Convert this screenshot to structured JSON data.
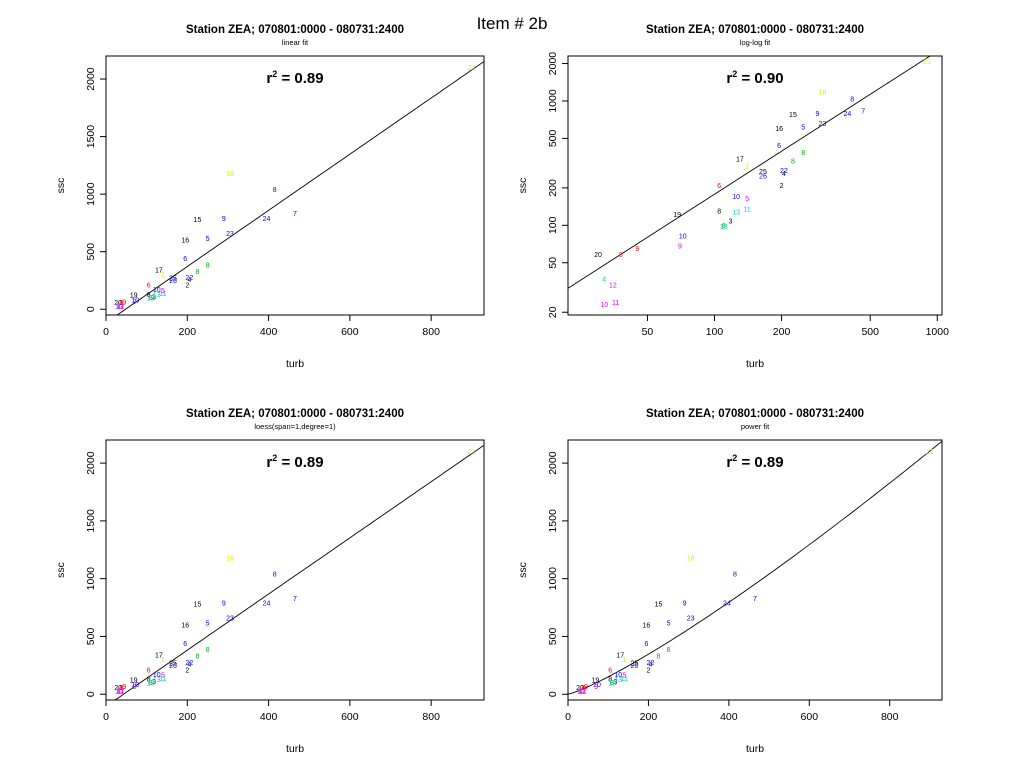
{
  "page": {
    "title": "Item # 2b"
  },
  "colors": {
    "black": "#000000",
    "red": "#ff0000",
    "green": "#00b000",
    "blue": "#0000ff",
    "cyan": "#00d0d0",
    "magenta": "#ee00ee",
    "yellow": "#e8e800"
  },
  "points": [
    {
      "label": "1",
      "turb": 140,
      "ssc": 300,
      "color": "yellow"
    },
    {
      "label": "2",
      "turb": 200,
      "ssc": 210,
      "color": "black"
    },
    {
      "label": "3",
      "turb": 118,
      "ssc": 108,
      "color": "black"
    },
    {
      "label": "4",
      "turb": 205,
      "ssc": 260,
      "color": "black"
    },
    {
      "label": "5",
      "turb": 250,
      "ssc": 615,
      "color": "blue"
    },
    {
      "label": "6",
      "turb": 195,
      "ssc": 440,
      "color": "blue"
    },
    {
      "label": "7",
      "turb": 465,
      "ssc": 830,
      "color": "blue"
    },
    {
      "label": "8",
      "turb": 415,
      "ssc": 1040,
      "color": "blue"
    },
    {
      "label": "9",
      "turb": 290,
      "ssc": 790,
      "color": "blue"
    },
    {
      "label": "23",
      "turb": 305,
      "ssc": 660,
      "color": "blue"
    },
    {
      "label": "24",
      "turb": 395,
      "ssc": 790,
      "color": "blue"
    },
    {
      "label": "22",
      "turb": 205,
      "ssc": 275,
      "color": "blue"
    },
    {
      "label": "15",
      "turb": 225,
      "ssc": 780,
      "color": "black"
    },
    {
      "label": "16",
      "turb": 195,
      "ssc": 600,
      "color": "black"
    },
    {
      "label": "17",
      "turb": 130,
      "ssc": 340,
      "color": "black"
    },
    {
      "label": "18",
      "turb": 305,
      "ssc": 1180,
      "color": "yellow"
    },
    {
      "label": "21",
      "turb": 900,
      "ssc": 2100,
      "color": "yellow"
    },
    {
      "label": "g1",
      "turb": 250,
      "ssc": 385,
      "color": "green"
    },
    {
      "label": "g2",
      "turb": 225,
      "ssc": 330,
      "color": "green"
    },
    {
      "label": "25",
      "turb": 165,
      "ssc": 270,
      "color": "black"
    },
    {
      "label": "26",
      "turb": 165,
      "ssc": 250,
      "color": "blue"
    },
    {
      "label": "8",
      "turb": 105,
      "ssc": 130,
      "color": "black"
    },
    {
      "label": "9",
      "turb": 45,
      "ssc": 65,
      "color": "red"
    },
    {
      "label": "8",
      "turb": 38,
      "ssc": 58,
      "color": "red"
    },
    {
      "label": "20",
      "turb": 30,
      "ssc": 58,
      "color": "black"
    },
    {
      "label": "19",
      "turb": 68,
      "ssc": 122,
      "color": "black"
    },
    {
      "label": "10",
      "turb": 72,
      "ssc": 82,
      "color": "blue"
    },
    {
      "label": "6",
      "turb": 105,
      "ssc": 210,
      "color": "red"
    },
    {
      "label": "11",
      "turb": 140,
      "ssc": 135,
      "color": "cyan"
    },
    {
      "label": "13",
      "turb": 110,
      "ssc": 98,
      "color": "cyan"
    },
    {
      "label": "10",
      "turb": 125,
      "ssc": 170,
      "color": "blue"
    },
    {
      "label": "5",
      "turb": 140,
      "ssc": 165,
      "color": "magenta"
    },
    {
      "label": "12",
      "turb": 35,
      "ssc": 33,
      "color": "magenta"
    },
    {
      "label": "10",
      "turb": 32,
      "ssc": 23,
      "color": "magenta"
    },
    {
      "label": "11",
      "turb": 36,
      "ssc": 24,
      "color": "magenta"
    },
    {
      "label": "4",
      "turb": 32,
      "ssc": 37,
      "color": "cyan"
    },
    {
      "label": "9",
      "turb": 70,
      "ssc": 68,
      "color": "magenta"
    },
    {
      "label": "13",
      "turb": 125,
      "ssc": 128,
      "color": "cyan"
    },
    {
      "label": "8",
      "turb": 110,
      "ssc": 100,
      "color": "green"
    }
  ],
  "panels": [
    {
      "title": "Station ZEA; 070801:0000 - 080731:2400",
      "subtitle": "linear fit",
      "r2_label": "r",
      "r2_sup": "2",
      "r2_value": " = 0.89",
      "xlabel": "turb",
      "ylabel": "ssc",
      "scale": "linear",
      "xlim": [
        0,
        930
      ],
      "ylim": [
        -50,
        2200
      ],
      "xticks": [
        "0",
        "200",
        "400",
        "600",
        "800"
      ],
      "xtick_values": [
        0,
        200,
        400,
        600,
        800
      ],
      "yticks": [
        "0",
        "500",
        "1000",
        "1500",
        "2000"
      ],
      "ytick_values": [
        0,
        500,
        1000,
        1500,
        2000
      ],
      "fit": {
        "kind": "linear",
        "intercept": -117,
        "slope": 2.44
      }
    },
    {
      "title": "Station ZEA; 070801:0000 - 080731:2400",
      "subtitle": "log-log fit",
      "r2_label": "r",
      "r2_sup": "2",
      "r2_value": " = 0.90",
      "xlabel": "turb",
      "ylabel": "ssc",
      "scale": "loglog",
      "xlim": [
        22,
        1050
      ],
      "ylim": [
        19,
        2300
      ],
      "xticks": [
        "50",
        "100",
        "200",
        "500",
        "1000"
      ],
      "xtick_values": [
        50,
        100,
        200,
        500,
        1000
      ],
      "yticks": [
        "20",
        "50",
        "100",
        "200",
        "500",
        "1000",
        "2000"
      ],
      "ytick_values": [
        20,
        50,
        100,
        200,
        500,
        1000,
        2000
      ],
      "fit": {
        "kind": "power",
        "a": 0.89,
        "b": 1.15
      }
    },
    {
      "title": "Station ZEA; 070801:0000 - 080731:2400",
      "subtitle": "loess(span=1,degree=1)",
      "r2_label": "r",
      "r2_sup": "2",
      "r2_value": " = 0.89",
      "xlabel": "turb",
      "ylabel": "ssc",
      "scale": "linear",
      "xlim": [
        0,
        930
      ],
      "ylim": [
        -50,
        2200
      ],
      "xticks": [
        "0",
        "200",
        "400",
        "600",
        "800"
      ],
      "xtick_values": [
        0,
        200,
        400,
        600,
        800
      ],
      "yticks": [
        "0",
        "500",
        "1000",
        "1500",
        "2000"
      ],
      "ytick_values": [
        0,
        500,
        1000,
        1500,
        2000
      ],
      "fit": {
        "kind": "linear",
        "intercept": -105,
        "slope": 2.43
      }
    },
    {
      "title": "Station ZEA; 070801:0000 - 080731:2400",
      "subtitle": "power fit",
      "r2_label": "r",
      "r2_sup": "2",
      "r2_value": " = 0.89",
      "xlabel": "turb",
      "ylabel": "ssc",
      "scale": "linear",
      "xlim": [
        0,
        930
      ],
      "ylim": [
        -50,
        2200
      ],
      "xticks": [
        "0",
        "200",
        "400",
        "600",
        "800"
      ],
      "xtick_values": [
        0,
        200,
        400,
        600,
        800
      ],
      "yticks": [
        "0",
        "500",
        "1000",
        "1500",
        "2000"
      ],
      "ytick_values": [
        0,
        500,
        1000,
        1500,
        2000
      ],
      "fit": {
        "kind": "power",
        "a": 0.6,
        "b": 1.2
      }
    }
  ]
}
